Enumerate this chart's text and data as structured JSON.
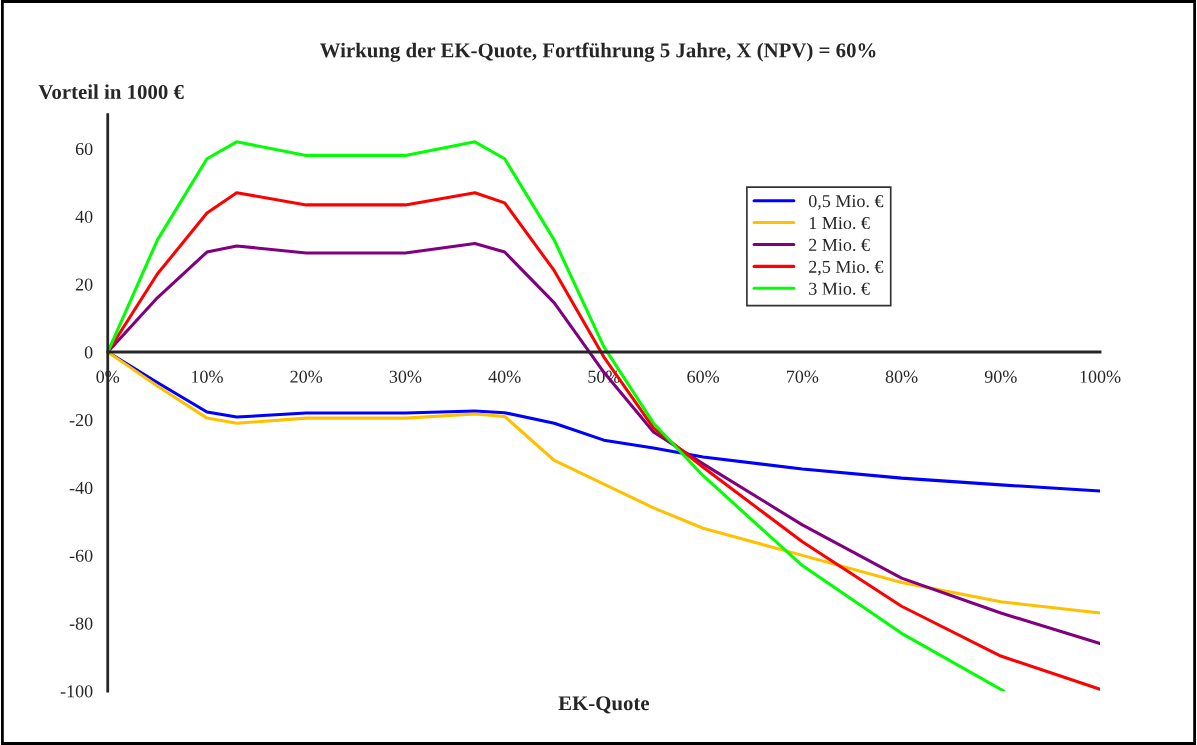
{
  "chart_data": {
    "type": "line",
    "title": "Wirkung der EK-Quote, Fortführung 5 Jahre, X (NPV) = 60%",
    "xlabel": "EK-Quote",
    "ylabel": "Vorteil in 1000 €",
    "xlim": [
      0,
      100
    ],
    "ylim": [
      -100,
      70
    ],
    "xticks": [
      {
        "value": 0,
        "label": "0%"
      },
      {
        "value": 10,
        "label": "10%"
      },
      {
        "value": 20,
        "label": "20%"
      },
      {
        "value": 30,
        "label": "30%"
      },
      {
        "value": 40,
        "label": "40%"
      },
      {
        "value": 50,
        "label": "50%"
      },
      {
        "value": 60,
        "label": "60%"
      },
      {
        "value": 70,
        "label": "70%"
      },
      {
        "value": 80,
        "label": "80%"
      },
      {
        "value": 90,
        "label": "90%"
      },
      {
        "value": 100,
        "label": "100%"
      }
    ],
    "yticks": [
      -100,
      -80,
      -60,
      -40,
      -20,
      0,
      20,
      40,
      60
    ],
    "grid": false,
    "legend": "top right",
    "marker": "none",
    "line_style": "solid",
    "x": [
      0,
      5,
      10,
      13,
      20,
      30,
      37,
      40,
      45,
      50,
      55,
      60,
      70,
      80,
      90,
      100
    ],
    "series": [
      {
        "name": "0,5 Mio. €",
        "color": "#0000ff",
        "values": [
          0,
          -9,
          -17.7,
          -19.2,
          -18,
          -18,
          -17.4,
          -17.9,
          -21,
          -26,
          -28.3,
          -31,
          -34.5,
          -37.2,
          -39.2,
          -41
        ]
      },
      {
        "name": "1 Mio. €",
        "color": "#ffc000",
        "values": [
          0,
          -10,
          -19.5,
          -21,
          -19.5,
          -19.5,
          -18.3,
          -19,
          -32,
          -39,
          -46,
          -52,
          -60,
          -68,
          -73.7,
          -77
        ]
      },
      {
        "name": "2 Mio. €",
        "color": "#800080",
        "values": [
          0,
          16,
          29.5,
          31.3,
          29.2,
          29.2,
          32,
          29.5,
          14.5,
          -6,
          -23.6,
          -33,
          -51,
          -66.7,
          -77,
          -86
        ]
      },
      {
        "name": "2,5 Mio. €",
        "color": "#ff0000",
        "values": [
          0,
          23,
          41,
          47,
          43.4,
          43.4,
          47,
          44,
          24,
          -1.5,
          -22.4,
          -34,
          -56,
          -75,
          -89.7,
          -99.5
        ]
      },
      {
        "name": "3 Mio. €",
        "color": "#00ff00",
        "x": [
          0,
          5,
          10,
          13,
          20,
          30,
          37,
          40,
          45,
          50,
          55,
          60,
          70,
          80,
          90.3
        ],
        "values": [
          0,
          33,
          57,
          62,
          58,
          58,
          62,
          57,
          33,
          1.5,
          -21,
          -36.5,
          -63,
          -83,
          -100
        ]
      }
    ]
  }
}
